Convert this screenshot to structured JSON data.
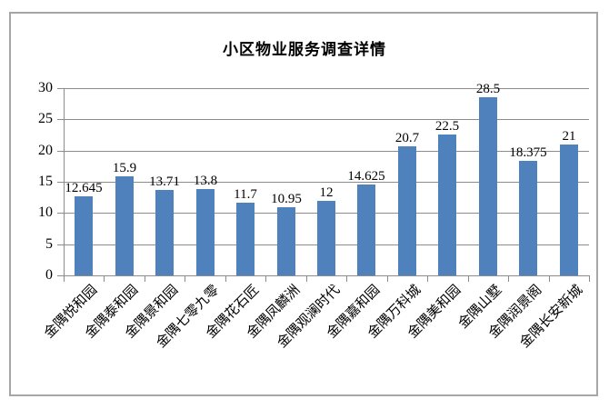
{
  "chart_data": {
    "type": "bar",
    "title": "小区物业服务调查详情",
    "categories": [
      "金隅悦和园",
      "金隅泰和园",
      "金隅景和园",
      "金隅七零九零",
      "金隅花石匠",
      "金隅凤麟洲",
      "金隅观澜时代",
      "金隅嘉和园",
      "金隅万科城",
      "金隅美和园",
      "金隅山墅",
      "金隅润景阁",
      "金隅长安新城"
    ],
    "values": [
      12.645,
      15.9,
      13.71,
      13.8,
      11.7,
      10.95,
      12,
      14.625,
      20.7,
      22.5,
      28.5,
      18.375,
      21
    ],
    "data_labels": [
      "12.645",
      "15.9",
      "13.71",
      "13.8",
      "11.7",
      "10.95",
      "12",
      "14.625",
      "20.7",
      "22.5",
      "28.5",
      "18.375",
      "21"
    ],
    "xlabel": "",
    "ylabel": "",
    "ylim": [
      0,
      30
    ],
    "yticks": [
      0,
      5,
      10,
      15,
      20,
      25,
      30
    ],
    "grid": true,
    "legend_position": "none",
    "x_label_rotation_deg": -45,
    "colors": {
      "bar_fill": "#4f81bd",
      "gridline": "#8c8c8c",
      "axis": "#8c8c8c",
      "text": "#000000",
      "chart_border": "#a6a6a6",
      "background": "#ffffff"
    }
  }
}
